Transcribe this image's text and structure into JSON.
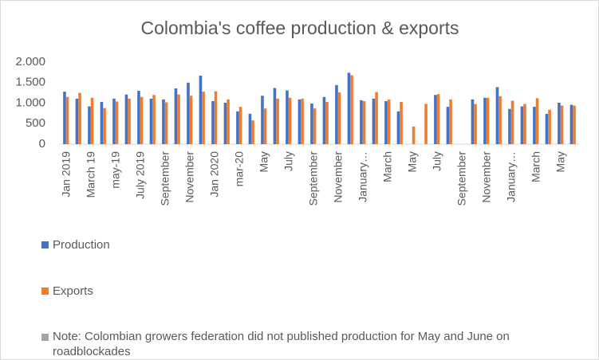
{
  "chart_data": {
    "type": "bar",
    "title": "Colombia's coffee production & exports",
    "categories": [
      "Jan 2019",
      null,
      "March 19",
      null,
      "may-19",
      null,
      "July 2019",
      null,
      "September",
      null,
      "November",
      null,
      "Jan 2020",
      null,
      "mar-20",
      null,
      "May",
      null,
      "July",
      null,
      "September",
      null,
      "November",
      null,
      "January…",
      null,
      "March",
      null,
      "May",
      null,
      "July",
      null,
      "September",
      null,
      "November",
      null,
      "January…",
      null,
      "March",
      null,
      "May",
      null
    ],
    "series": [
      {
        "name": "Production",
        "color": "#4472c4",
        "values": [
          1280,
          1110,
          920,
          1030,
          1110,
          1210,
          1300,
          1110,
          1090,
          1360,
          1500,
          1670,
          1050,
          1010,
          800,
          740,
          1180,
          1370,
          1310,
          1090,
          990,
          1150,
          1440,
          1740,
          1070,
          1110,
          1050,
          800,
          null,
          null,
          1200,
          910,
          null,
          1090,
          1130,
          1390,
          860,
          920,
          910,
          740,
          1010,
          960
        ]
      },
      {
        "name": "Exports",
        "color": "#ed7d31",
        "values": [
          1150,
          1250,
          1130,
          880,
          1040,
          1110,
          1150,
          1200,
          1020,
          1210,
          1180,
          1280,
          1290,
          1090,
          910,
          580,
          870,
          1110,
          1130,
          1110,
          870,
          1030,
          1260,
          1680,
          1050,
          1270,
          1090,
          1030,
          430,
          980,
          1220,
          1090,
          null,
          980,
          1130,
          1170,
          1060,
          980,
          1120,
          840,
          940,
          940
        ]
      }
    ],
    "note": {
      "name": "Note: Colombian growers federation did not published production for May and June on roadblockades",
      "color": "#a5a5a5"
    },
    "ylim": [
      0,
      2000
    ],
    "yticks": [
      0,
      500,
      {
        "value": 1000,
        "label": "1.000"
      },
      {
        "value": 1500,
        "label": "1.500"
      },
      {
        "value": 2000,
        "label": "2.000"
      }
    ],
    "grid": false,
    "legend": "left"
  }
}
